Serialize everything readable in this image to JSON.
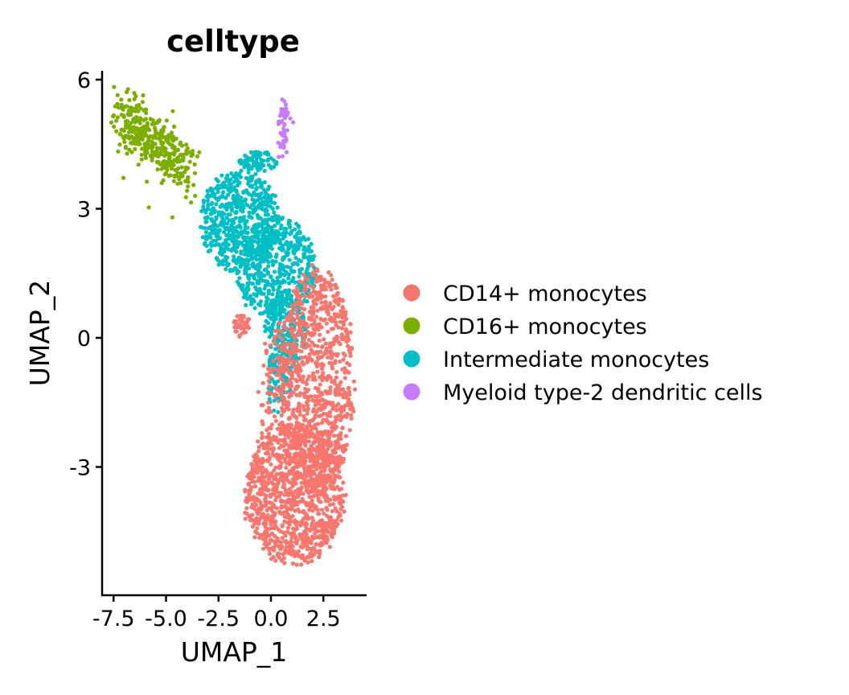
{
  "chart_data": {
    "type": "scatter",
    "title": "celltype",
    "xlabel": "UMAP_1",
    "ylabel": "UMAP_2",
    "xlim": [
      -8.1,
      4.6
    ],
    "ylim": [
      -6.0,
      6.1
    ],
    "x_ticks": [
      -7.5,
      -5.0,
      -2.5,
      0.0,
      2.5
    ],
    "x_tick_labels": [
      "-7.5",
      "-5.0",
      "-2.5",
      "0.0",
      "2.5"
    ],
    "y_ticks": [
      -3,
      0,
      3,
      6
    ],
    "y_tick_labels": [
      "-3",
      "0",
      "3",
      "6"
    ],
    "grid": false,
    "legend_position": "right",
    "series": [
      {
        "name": "CD14+ monocytes",
        "color": "#F8766D",
        "n_points": 2100,
        "clusters": [
          {
            "kind": "ellipse",
            "cx": 1.1,
            "cy": -3.6,
            "rx": 2.4,
            "ry": 1.7,
            "weight": 0.5
          },
          {
            "kind": "ellipse",
            "cx": 2.2,
            "cy": -1.0,
            "rx": 1.8,
            "ry": 2.7,
            "weight": 0.43
          },
          {
            "kind": "ellipse",
            "cx": 0.2,
            "cy": -1.4,
            "rx": 0.8,
            "ry": 1.8,
            "weight": 0.05
          },
          {
            "kind": "ellipse",
            "cx": -1.4,
            "cy": 0.3,
            "rx": 0.4,
            "ry": 0.3,
            "weight": 0.02
          }
        ]
      },
      {
        "name": "CD16+ monocytes",
        "color": "#7CAE00",
        "n_points": 380,
        "clusters": [
          {
            "kind": "segment",
            "x0": -7.3,
            "y0": 5.2,
            "x1": -4.0,
            "y1": 3.9,
            "spread": 0.33,
            "weight": 1.0
          }
        ]
      },
      {
        "name": "Intermediate monocytes",
        "color": "#00BFC4",
        "n_points": 1500,
        "clusters": [
          {
            "kind": "ellipse",
            "cx": -1.5,
            "cy": 2.7,
            "rx": 1.9,
            "ry": 1.2,
            "weight": 0.4
          },
          {
            "kind": "ellipse",
            "cx": 0.3,
            "cy": 1.6,
            "rx": 2.0,
            "ry": 1.2,
            "weight": 0.35
          },
          {
            "kind": "ellipse",
            "cx": 0.7,
            "cy": 0.1,
            "rx": 1.0,
            "ry": 1.0,
            "weight": 0.15
          },
          {
            "kind": "ellipse",
            "cx": 0.4,
            "cy": -1.0,
            "rx": 0.6,
            "ry": 0.8,
            "weight": 0.05
          },
          {
            "kind": "ellipse",
            "cx": -0.6,
            "cy": 4.1,
            "rx": 0.9,
            "ry": 0.25,
            "weight": 0.05
          }
        ]
      },
      {
        "name": "Myeloid type-2 dendritic cells",
        "color": "#C77CFF",
        "n_points": 60,
        "clusters": [
          {
            "kind": "segment",
            "x0": 0.65,
            "y0": 5.5,
            "x1": 0.55,
            "y1": 4.3,
            "spread": 0.12,
            "weight": 1.0
          }
        ]
      }
    ]
  }
}
